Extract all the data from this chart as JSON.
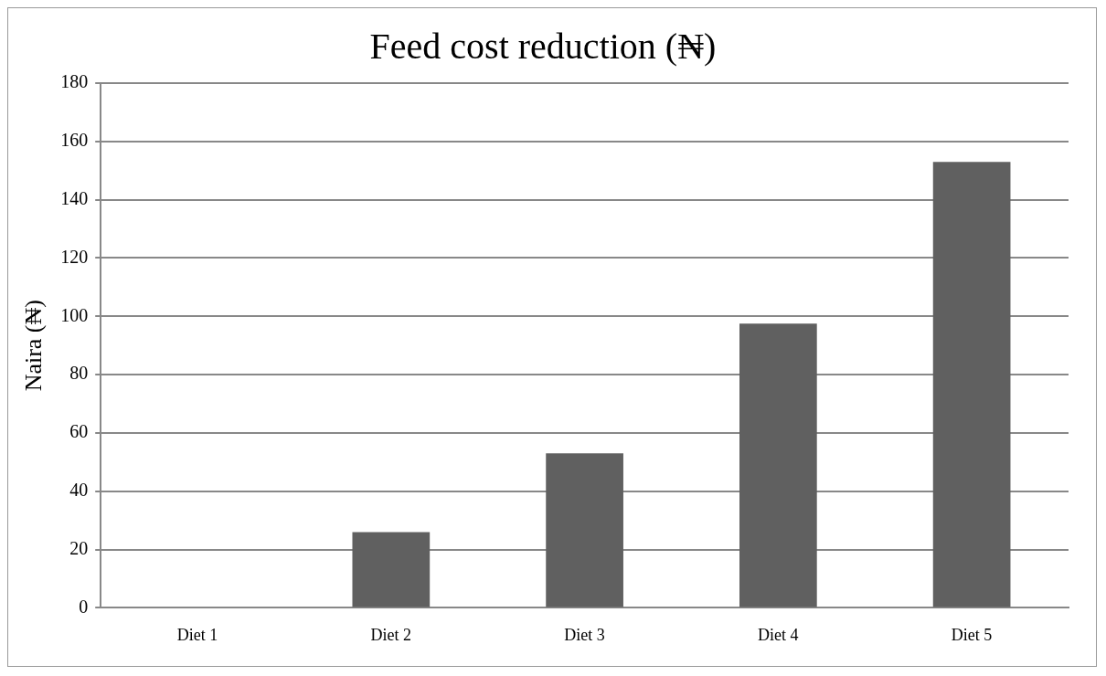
{
  "chart_data": {
    "type": "bar",
    "title": "Feed cost reduction (₦)",
    "ylabel": "Naira (₦)",
    "categories": [
      "Diet 1",
      "Diet 2",
      "Diet 3",
      "Diet 4",
      "Diet 5"
    ],
    "values": [
      0,
      26,
      53,
      97.5,
      153
    ],
    "color": "#606060",
    "ylim": [
      0,
      180
    ],
    "yticks": [
      0,
      20,
      40,
      60,
      80,
      100,
      120,
      140,
      160,
      180
    ],
    "grid": "y",
    "legend": false
  }
}
